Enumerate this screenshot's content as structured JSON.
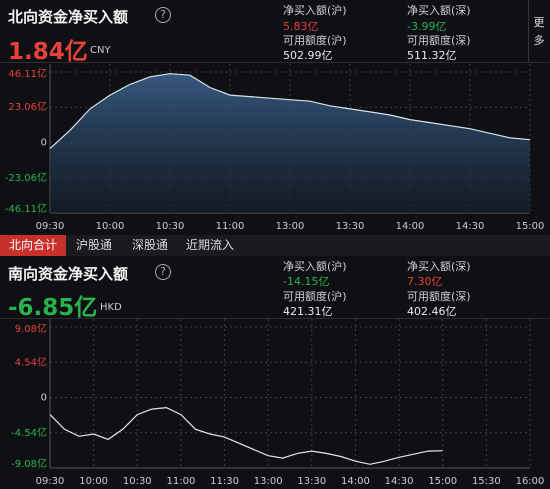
{
  "north": {
    "title": "北向资金净买入额",
    "value": "1.84亿",
    "unit": "CNY",
    "stats": [
      {
        "label": "净买入额(沪)",
        "value": "5.83亿"
      },
      {
        "label": "净买入额(深)",
        "value": "-3.99亿"
      },
      {
        "label": "可用额度(沪)",
        "value": "502.99亿"
      },
      {
        "label": "可用额度(深)",
        "value": "511.32亿"
      }
    ]
  },
  "more": "更多",
  "tabs": [
    "北向合计",
    "沪股通",
    "深股通",
    "近期流入"
  ],
  "south": {
    "title": "南向资金净买入额",
    "value": "-6.85亿",
    "unit": "HKD",
    "stats": [
      {
        "label": "净买入额(沪)",
        "value": "-14.15亿"
      },
      {
        "label": "净买入额(深)",
        "value": "7.30亿"
      },
      {
        "label": "可用额度(沪)",
        "value": "421.31亿"
      },
      {
        "label": "可用额度(深)",
        "value": "402.46亿"
      }
    ]
  },
  "chart_data": [
    {
      "type": "line",
      "fill": "#2a4866",
      "x": [
        "09:30",
        "09:40",
        "09:50",
        "10:00",
        "10:10",
        "10:20",
        "10:30",
        "10:40",
        "10:50",
        "11:00",
        "13:00",
        "13:10",
        "13:20",
        "13:30",
        "13:40",
        "13:50",
        "14:00",
        "14:10",
        "14:20",
        "14:30",
        "14:40",
        "14:50",
        "15:00"
      ],
      "series": [
        {
          "color": "#d8e2ee",
          "values": [
            -4,
            8,
            22,
            31,
            38,
            43,
            45,
            44,
            36,
            31,
            28,
            27,
            24,
            22,
            20,
            18,
            15,
            13,
            11,
            9,
            6,
            3,
            1.84
          ]
        }
      ],
      "xticks": [
        "09:30",
        "10:00",
        "10:30",
        "11:00",
        "13:00",
        "13:30",
        "14:00",
        "14:30",
        "15:00"
      ],
      "ylim": [
        -46.11,
        46.11
      ],
      "yticks": [
        {
          "value": 46.11,
          "label": "46.11亿"
        },
        {
          "value": 23.06,
          "label": "23.06亿"
        },
        0,
        {
          "value": -23.06,
          "label": "-23.06亿"
        },
        {
          "value": -46.11,
          "label": "-46.11亿"
        }
      ],
      "grid": true
    },
    {
      "type": "line",
      "x": [
        "09:30",
        "09:40",
        "09:50",
        "10:00",
        "10:10",
        "10:20",
        "10:30",
        "10:40",
        "10:50",
        "11:00",
        "11:10",
        "11:20",
        "11:30",
        "13:00",
        "13:10",
        "13:20",
        "13:30",
        "13:40",
        "13:50",
        "14:00",
        "14:10",
        "14:20",
        "14:30",
        "14:40",
        "14:50",
        "15:00"
      ],
      "series": [
        {
          "color": "#e6e6e6",
          "values": [
            -2.2,
            -4.1,
            -5,
            -4.7,
            -5.4,
            -4.1,
            -2.2,
            -1.5,
            -1.3,
            -2.2,
            -4.1,
            -4.7,
            -5.1,
            -7.5,
            -7.8,
            -7.2,
            -6.9,
            -7.2,
            -7.6,
            -8.2,
            -8.6,
            -8.2,
            -7.7,
            -7.3,
            -6.9,
            -6.85
          ]
        }
      ],
      "xticks": [
        "09:30",
        "10:00",
        "10:30",
        "11:00",
        "11:30",
        "13:00",
        "13:30",
        "14:00",
        "14:30",
        "15:00",
        "15:30",
        "16:00"
      ],
      "ylim": [
        -9.08,
        9.08
      ],
      "yticks": [
        {
          "value": 9.08,
          "label": "9.08亿"
        },
        {
          "value": 4.54,
          "label": "4.54亿"
        },
        0,
        {
          "value": -4.54,
          "label": "-4.54亿"
        },
        {
          "value": -9.08,
          "label": "-9.08亿"
        }
      ],
      "grid": true
    }
  ]
}
